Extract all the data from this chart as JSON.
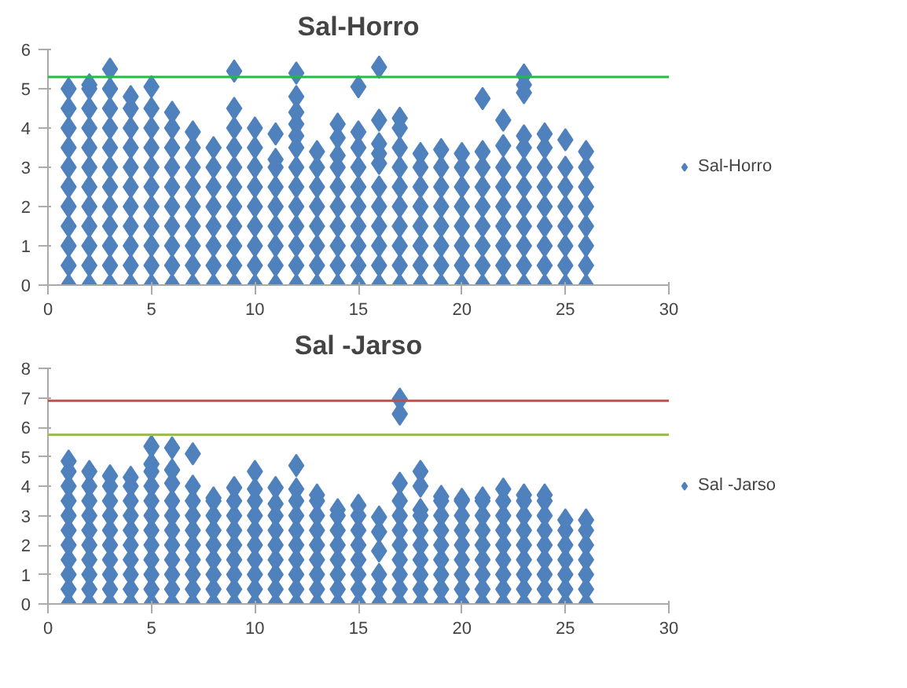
{
  "chart_data": [
    {
      "type": "scatter",
      "title": "Sal-Horro",
      "xlim": [
        0,
        30
      ],
      "xticks": [
        0,
        5,
        10,
        15,
        20,
        25,
        30
      ],
      "ylim": [
        0,
        6
      ],
      "yticks": [
        0,
        1,
        2,
        3,
        4,
        5,
        6
      ],
      "grid": false,
      "legend": "right",
      "marker": "diamond",
      "ref_lines": [
        {
          "axis": "y",
          "value": 5.3,
          "color": "#22bb44"
        }
      ],
      "series": [
        {
          "name": "Sal-Horro",
          "color": "#4f81bd",
          "x": [
            1,
            1,
            1,
            1,
            1,
            1,
            1,
            1,
            1,
            1,
            1,
            2,
            2,
            2,
            2,
            2,
            2,
            2,
            2,
            2,
            2,
            2,
            2,
            3,
            3,
            3,
            3,
            3,
            3,
            3,
            3,
            3,
            3,
            3,
            3,
            4,
            4,
            4,
            4,
            4,
            4,
            4,
            4,
            4,
            4,
            4,
            5,
            5,
            5,
            5,
            5,
            5,
            5,
            5,
            5,
            5,
            5,
            6,
            6,
            6,
            6,
            6,
            6,
            6,
            6,
            6,
            6,
            7,
            7,
            7,
            7,
            7,
            7,
            7,
            7,
            7,
            8,
            8,
            8,
            8,
            8,
            8,
            8,
            8,
            9,
            9,
            9,
            9,
            9,
            9,
            9,
            9,
            9,
            9,
            9,
            10,
            10,
            10,
            10,
            10,
            10,
            10,
            10,
            10,
            11,
            11,
            11,
            11,
            11,
            11,
            11,
            11,
            11,
            12,
            12,
            12,
            12,
            12,
            12,
            12,
            12,
            12,
            12,
            12,
            12,
            12,
            13,
            13,
            13,
            13,
            13,
            13,
            13,
            13,
            14,
            14,
            14,
            14,
            14,
            14,
            14,
            14,
            14,
            14,
            15,
            15,
            15,
            15,
            15,
            15,
            15,
            15,
            15,
            15,
            16,
            16,
            16,
            16,
            16,
            16,
            16,
            16,
            16,
            16,
            16,
            17,
            17,
            17,
            17,
            17,
            17,
            17,
            17,
            17,
            17,
            18,
            18,
            18,
            18,
            18,
            18,
            18,
            18,
            19,
            19,
            19,
            19,
            19,
            19,
            19,
            19,
            20,
            20,
            20,
            20,
            20,
            20,
            20,
            20,
            21,
            21,
            21,
            21,
            21,
            21,
            21,
            21,
            21,
            22,
            22,
            22,
            22,
            22,
            22,
            22,
            22,
            22,
            23,
            23,
            23,
            23,
            23,
            23,
            23,
            23,
            23,
            23,
            23,
            23,
            24,
            24,
            24,
            24,
            24,
            24,
            24,
            24,
            24,
            25,
            25,
            25,
            25,
            25,
            25,
            25,
            25,
            26,
            26,
            26,
            26,
            26,
            26,
            26,
            26
          ],
          "values": [
            0,
            0.5,
            1,
            1.5,
            2,
            2.5,
            3,
            3.5,
            4,
            4.5,
            5,
            0,
            0.5,
            1,
            1.5,
            2,
            2.5,
            3,
            3.5,
            4,
            4.5,
            5,
            5.1,
            0,
            0.5,
            1,
            1.5,
            2,
            2.5,
            3,
            3.5,
            4,
            4.5,
            5,
            5.5,
            0,
            0.5,
            1,
            1.5,
            2,
            2.5,
            3,
            3.5,
            4,
            4.5,
            4.8,
            0,
            0.5,
            1,
            1.5,
            2,
            2.5,
            3,
            3.5,
            4,
            4.5,
            5.05,
            0,
            0.5,
            1,
            1.5,
            2,
            2.5,
            3,
            3.5,
            4,
            4.4,
            0,
            0.5,
            1,
            1.5,
            2,
            2.5,
            3,
            3.5,
            3.9,
            0,
            0.5,
            1,
            1.5,
            2,
            2.5,
            3,
            3.5,
            0,
            0.5,
            1,
            1.5,
            2,
            2.5,
            3,
            3.5,
            4,
            4.5,
            5.45,
            0,
            0.5,
            1,
            1.5,
            2,
            2.5,
            3,
            3.5,
            4,
            0,
            0.5,
            1,
            1.5,
            2,
            2.5,
            3,
            3.2,
            3.85,
            0,
            0.5,
            1,
            1.5,
            2,
            2.5,
            3,
            3.5,
            3.8,
            4.1,
            4.4,
            4.8,
            5.4,
            0,
            0.5,
            1,
            1.5,
            2,
            2.5,
            3,
            3.4,
            0,
            0.5,
            1,
            1.5,
            2,
            2.5,
            3,
            3.3,
            3.75,
            4.1,
            0,
            0.5,
            1,
            1.5,
            2,
            2.5,
            3,
            3.5,
            3.9,
            5.05,
            0,
            0.5,
            1,
            1.5,
            2,
            2.5,
            3.1,
            3.35,
            3.6,
            4.2,
            5.55,
            0,
            0.5,
            1,
            1.5,
            2,
            2.5,
            3,
            3.5,
            4,
            4.25,
            0,
            0.5,
            1,
            1.5,
            2,
            2.5,
            3,
            3.35,
            0,
            0.5,
            1,
            1.5,
            2,
            2.5,
            3,
            3.45,
            0,
            0.5,
            1,
            1.5,
            2,
            2.5,
            3,
            3.35,
            0,
            0.5,
            1,
            1.5,
            2,
            2.5,
            3,
            3.4,
            4.75,
            0,
            0.5,
            1,
            1.5,
            2,
            2.5,
            3,
            3.55,
            4.2,
            0,
            0.5,
            1,
            1.5,
            2,
            2.5,
            3,
            3.5,
            3.8,
            4.9,
            5.1,
            5.35,
            0,
            0.5,
            1,
            1.5,
            2,
            2.5,
            3,
            3.5,
            3.85,
            0,
            0.5,
            1,
            1.5,
            2,
            2.5,
            3,
            3.7,
            0,
            0.5,
            1,
            1.5,
            2,
            2.5,
            3,
            3.4
          ]
        }
      ]
    },
    {
      "type": "scatter",
      "title": "Sal -Jarso",
      "xlim": [
        0,
        30
      ],
      "xticks": [
        0,
        5,
        10,
        15,
        20,
        25,
        30
      ],
      "ylim": [
        0,
        8
      ],
      "yticks": [
        0,
        1,
        2,
        3,
        4,
        5,
        6,
        7,
        8
      ],
      "grid": false,
      "legend": "right",
      "marker": "diamond",
      "ref_lines": [
        {
          "axis": "y",
          "value": 6.9,
          "color": "#c0504d"
        },
        {
          "axis": "y",
          "value": 5.75,
          "color": "#9bbb59"
        }
      ],
      "series": [
        {
          "name": "Sal -Jarso",
          "color": "#4f81bd",
          "x": [
            1,
            1,
            1,
            1,
            1,
            1,
            1,
            1,
            1,
            1,
            1,
            2,
            2,
            2,
            2,
            2,
            2,
            2,
            2,
            2,
            2,
            3,
            3,
            3,
            3,
            3,
            3,
            3,
            3,
            3,
            3,
            4,
            4,
            4,
            4,
            4,
            4,
            4,
            4,
            4,
            4,
            5,
            5,
            5,
            5,
            5,
            5,
            5,
            5,
            5,
            5,
            5,
            5,
            6,
            6,
            6,
            6,
            6,
            6,
            6,
            6,
            6,
            6,
            6,
            7,
            7,
            7,
            7,
            7,
            7,
            7,
            7,
            7,
            7,
            8,
            8,
            8,
            8,
            8,
            8,
            8,
            8,
            8,
            9,
            9,
            9,
            9,
            9,
            9,
            9,
            9,
            9,
            10,
            10,
            10,
            10,
            10,
            10,
            10,
            10,
            10,
            10,
            11,
            11,
            11,
            11,
            11,
            11,
            11,
            11,
            11,
            12,
            12,
            12,
            12,
            12,
            12,
            12,
            12,
            12,
            12,
            13,
            13,
            13,
            13,
            13,
            13,
            13,
            13,
            13,
            14,
            14,
            14,
            14,
            14,
            14,
            14,
            14,
            15,
            15,
            15,
            15,
            15,
            15,
            15,
            15,
            16,
            16,
            16,
            16,
            16,
            16,
            17,
            17,
            17,
            17,
            17,
            17,
            17,
            17,
            17,
            17,
            17,
            18,
            18,
            18,
            18,
            18,
            18,
            18,
            18,
            18,
            18,
            19,
            19,
            19,
            19,
            19,
            19,
            19,
            19,
            19,
            20,
            20,
            20,
            20,
            20,
            20,
            20,
            20,
            20,
            21,
            21,
            21,
            21,
            21,
            21,
            21,
            21,
            21,
            22,
            22,
            22,
            22,
            22,
            22,
            22,
            22,
            22,
            23,
            23,
            23,
            23,
            23,
            23,
            23,
            23,
            23,
            24,
            24,
            24,
            24,
            24,
            24,
            24,
            24,
            24,
            25,
            25,
            25,
            25,
            25,
            25,
            25,
            26,
            26,
            26,
            26,
            26,
            26,
            26
          ],
          "values": [
            0,
            0.5,
            1,
            1.5,
            2,
            2.5,
            3,
            3.5,
            4,
            4.5,
            4.85,
            0,
            0.5,
            1,
            1.5,
            2,
            2.5,
            3,
            3.5,
            4,
            4.5,
            0,
            0.5,
            1,
            1.5,
            2,
            2.5,
            3,
            3.5,
            4,
            4.35,
            0,
            0.5,
            1,
            1.5,
            2,
            2.5,
            3,
            3.5,
            4,
            4.3,
            0,
            0.5,
            1,
            1.5,
            2,
            2.5,
            3,
            3.5,
            4,
            4.5,
            4.75,
            5.35,
            0,
            0.5,
            1,
            1.5,
            2,
            2.5,
            3,
            3.5,
            4.1,
            4.55,
            5.3,
            0,
            0.5,
            1,
            1.5,
            2,
            2.5,
            3,
            3.5,
            4,
            5.1,
            0,
            0.5,
            1,
            1.5,
            2,
            2.5,
            3,
            3.5,
            3.6,
            0,
            0.5,
            1,
            1.5,
            2,
            2.5,
            3,
            3.5,
            3.95,
            0,
            0.5,
            1,
            1.5,
            2,
            2.5,
            3,
            3.5,
            3.9,
            4.5,
            0,
            0.5,
            1,
            1.5,
            2,
            2.5,
            3,
            3.4,
            3.95,
            0,
            0.5,
            1,
            1.5,
            2,
            2.5,
            3,
            3.5,
            3.9,
            4.7,
            0,
            0.5,
            1,
            1.5,
            2,
            2.5,
            3,
            3.5,
            3.7,
            0,
            0.5,
            1,
            1.5,
            2,
            2.5,
            3,
            3.2,
            0,
            0.5,
            1,
            1.5,
            2,
            2.5,
            3,
            3.35,
            0,
            0.5,
            1,
            1.8,
            2.45,
            2.95,
            0,
            0.5,
            1,
            1.5,
            2,
            2.5,
            3,
            3.5,
            4.1,
            6.45,
            6.95,
            0,
            0.5,
            1,
            1.5,
            2,
            2.5,
            3,
            3.2,
            4,
            4.5,
            0,
            0.5,
            1,
            1.5,
            2,
            2.5,
            3,
            3.5,
            3.65,
            0,
            0.5,
            1,
            1.5,
            2,
            2.5,
            3,
            3.5,
            3.55,
            0,
            0.5,
            1,
            1.5,
            2,
            2.5,
            3,
            3.5,
            3.6,
            0,
            0.5,
            1,
            1.5,
            2,
            2.5,
            3,
            3.5,
            3.9,
            0,
            0.5,
            1,
            1.5,
            2,
            2.5,
            3,
            3.5,
            3.7,
            0,
            0.5,
            1,
            1.5,
            2,
            2.5,
            3,
            3.5,
            3.7,
            0,
            0.5,
            1,
            1.5,
            2,
            2.5,
            2.85,
            0,
            0.5,
            1,
            1.5,
            2,
            2.5,
            2.85
          ]
        }
      ]
    }
  ]
}
